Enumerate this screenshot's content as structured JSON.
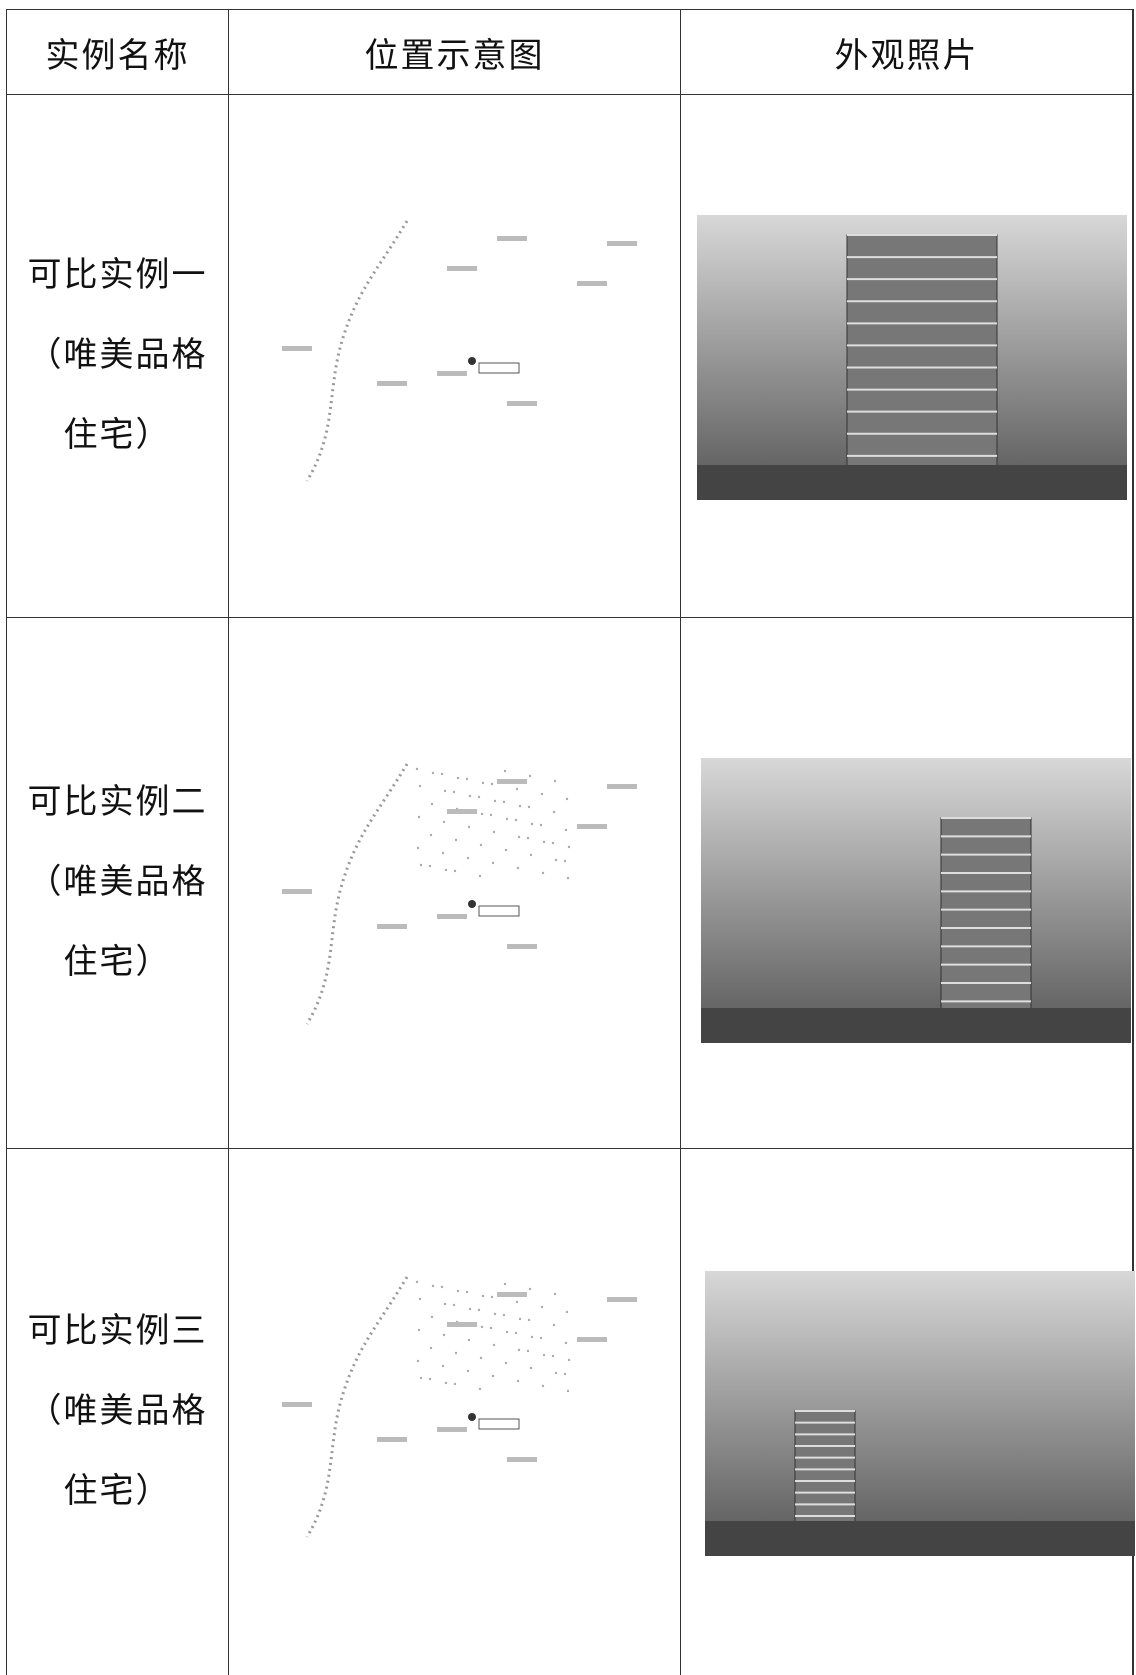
{
  "table": {
    "header": [
      "实例名称",
      "位置示意图",
      "外观照片"
    ],
    "rows": [
      {
        "name": [
          "可比实例一",
          "（唯美品格",
          "住宅）"
        ]
      },
      {
        "name": [
          "可比实例二",
          "（唯美品格",
          "住宅）"
        ]
      },
      {
        "name": [
          "可比实例三",
          "（唯美品格",
          "住宅）"
        ]
      }
    ]
  }
}
